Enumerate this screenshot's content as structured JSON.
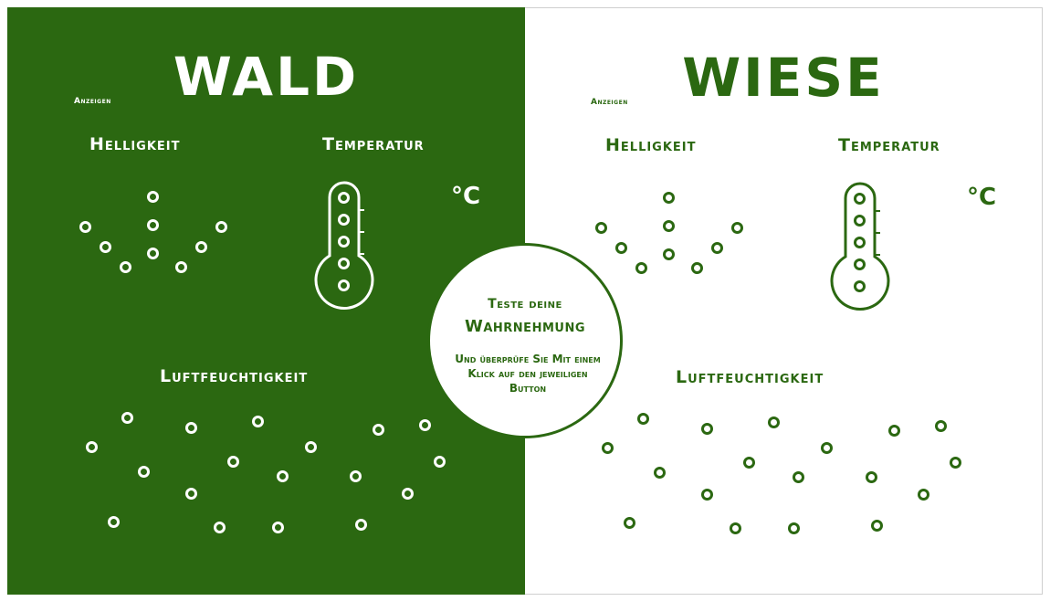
{
  "colors": {
    "forest_green": "#2b6811",
    "white": "#ffffff"
  },
  "left": {
    "title": "WALD",
    "show_label": "Anzeigen",
    "brightness_label": "Helligkeit",
    "temperature_label": "Temperatur",
    "unit": "°C",
    "humidity_label": "Luftfeuchtigkeit"
  },
  "right": {
    "title": "WIESE",
    "show_label": "Anzeigen",
    "brightness_label": "Helligkeit",
    "temperature_label": "Temperatur",
    "unit": "°C",
    "humidity_label": "Luftfeuchtigkeit"
  },
  "center": {
    "line1": "Teste deine",
    "line2": "Wahrnehmung",
    "line3": "Und überprüfe Sie Mit einem Klick auf den jeweiligen Button"
  },
  "icons": [
    "thermometer-icon",
    "selection-circle-icon"
  ]
}
